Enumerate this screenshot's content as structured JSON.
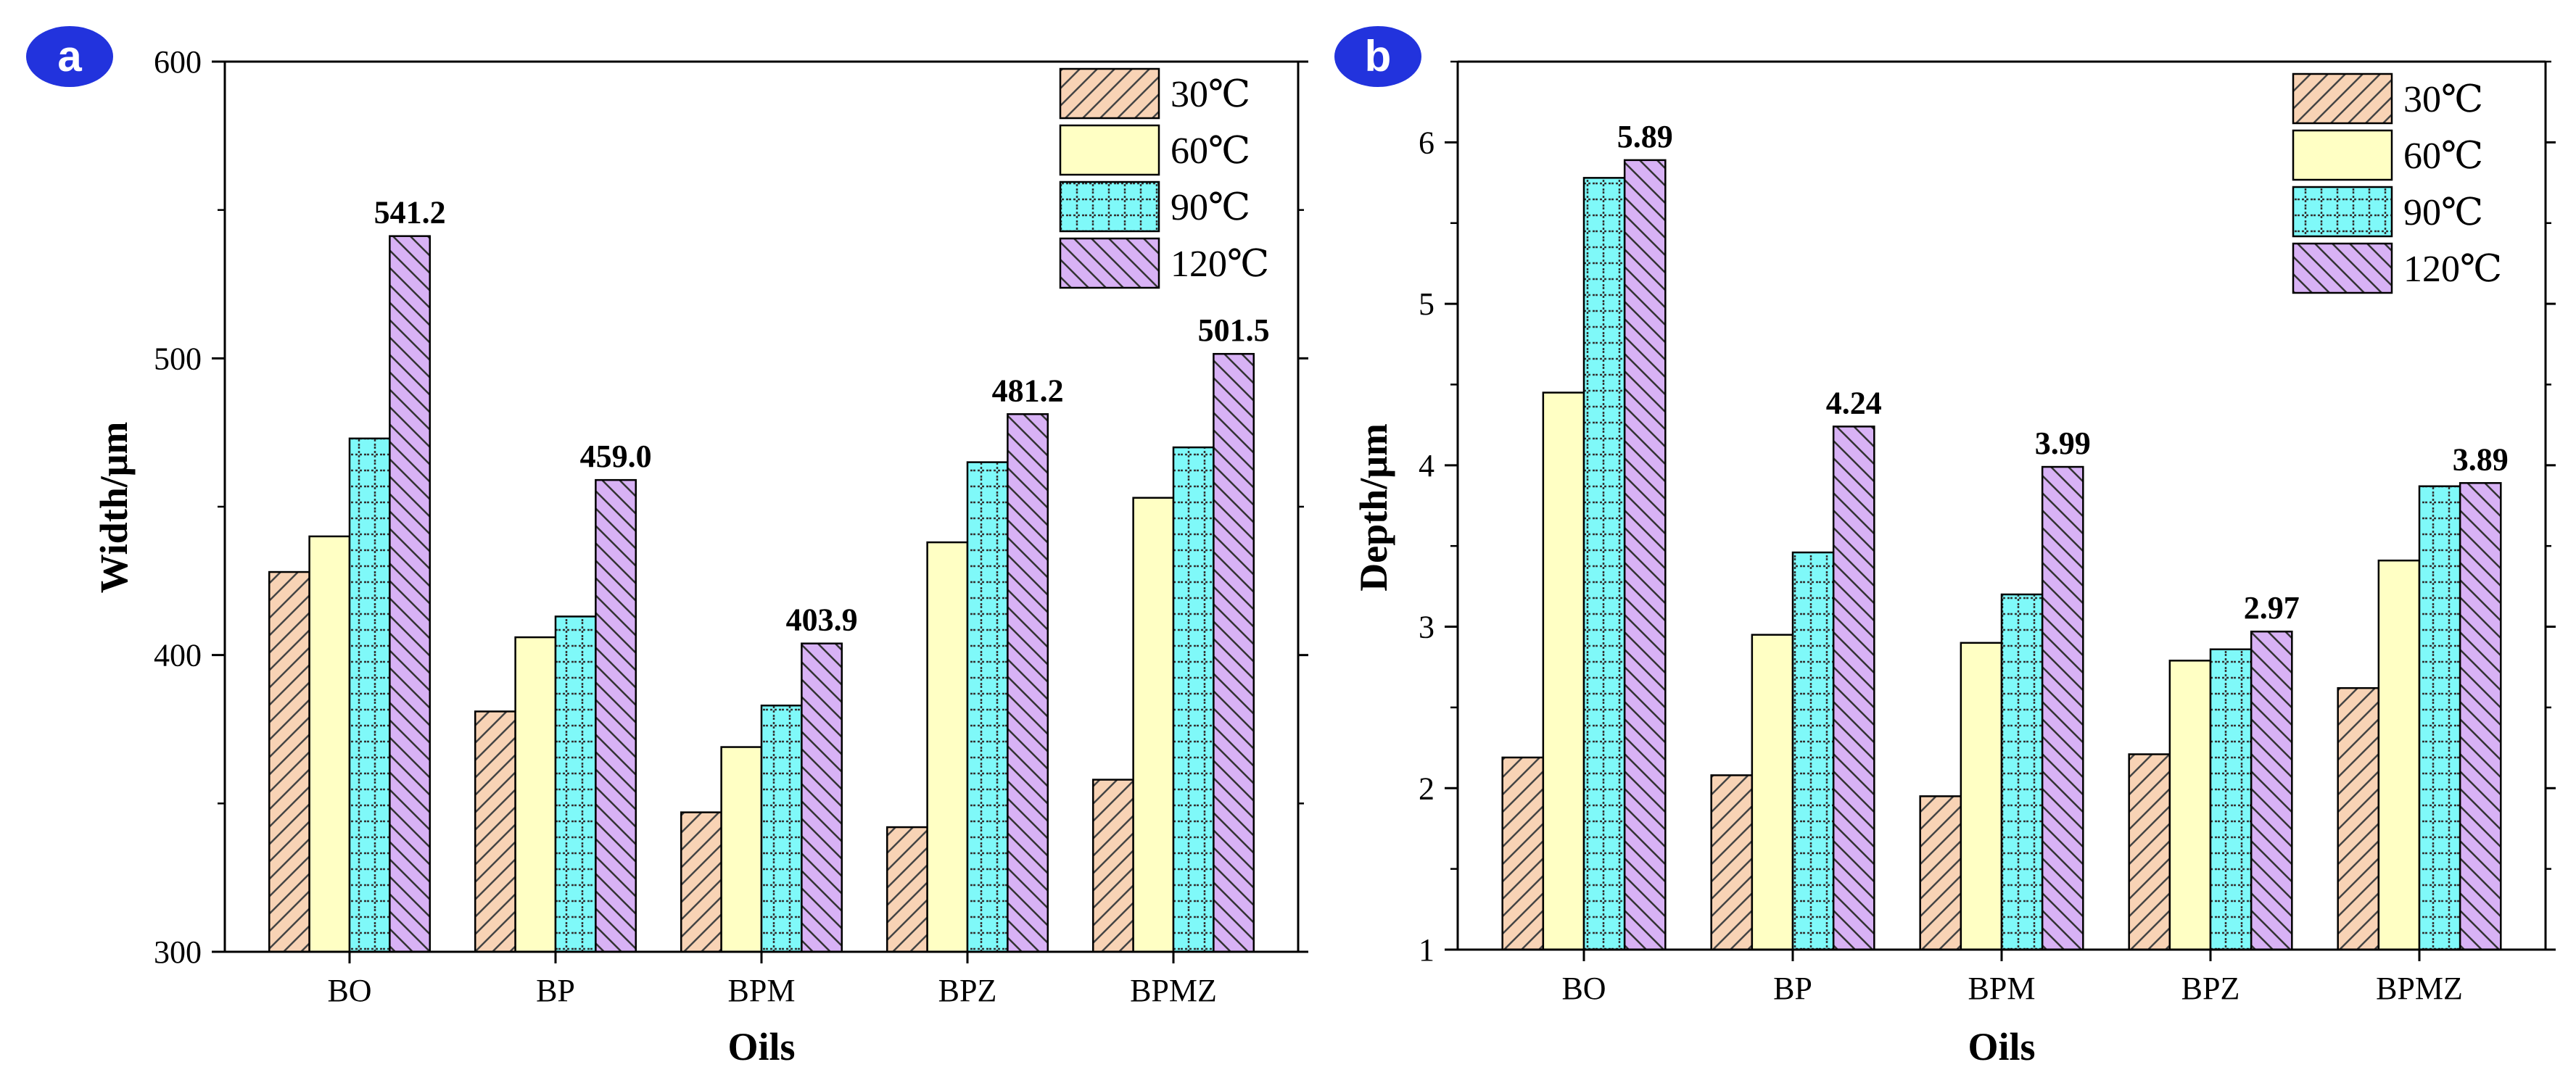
{
  "chart_data": [
    {
      "type": "bar",
      "panel_label": "a",
      "categories": [
        "BO",
        "BP",
        "BPM",
        "BPZ",
        "BPMZ"
      ],
      "series": [
        {
          "name": "30℃",
          "values": [
            428,
            381,
            347,
            342,
            358
          ]
        },
        {
          "name": "60℃",
          "values": [
            440,
            406,
            369,
            438,
            453
          ]
        },
        {
          "name": "90℃",
          "values": [
            473,
            413,
            383,
            465,
            470
          ]
        },
        {
          "name": "120℃",
          "values": [
            541.2,
            459.0,
            403.9,
            481.2,
            501.5
          ]
        }
      ],
      "data_labels": [
        "541.2",
        "459.0",
        "403.9",
        "481.2",
        "501.5"
      ],
      "xlabel": "Oils",
      "ylabel": "Width/μm",
      "ylim": [
        300,
        600
      ],
      "yticks": [
        300,
        400,
        500,
        600
      ],
      "legend_position": "top-right",
      "grid": false
    },
    {
      "type": "bar",
      "panel_label": "b",
      "categories": [
        "BO",
        "BP",
        "BPM",
        "BPZ",
        "BPMZ"
      ],
      "series": [
        {
          "name": "30℃",
          "values": [
            2.19,
            2.08,
            1.95,
            2.21,
            2.62
          ]
        },
        {
          "name": "60℃",
          "values": [
            4.45,
            2.95,
            2.9,
            2.79,
            3.41
          ]
        },
        {
          "name": "90℃",
          "values": [
            5.78,
            3.46,
            3.2,
            2.86,
            3.87
          ]
        },
        {
          "name": "120℃",
          "values": [
            5.89,
            4.24,
            3.99,
            2.97,
            3.89
          ]
        }
      ],
      "data_labels": [
        "5.89",
        "4.24",
        "3.99",
        "2.97",
        "3.89"
      ],
      "xlabel": "Oils",
      "ylabel": "Depth/μm",
      "ylim": [
        1,
        6.5
      ],
      "yticks": [
        1,
        2,
        3,
        4,
        5,
        6
      ],
      "legend_position": "top-right",
      "grid": false
    }
  ],
  "colors": {
    "series_fill": [
      "#f8d3b5",
      "#ffffc4",
      "#7ff9f9",
      "#d8b2f5"
    ],
    "badge": "#2233dd"
  }
}
